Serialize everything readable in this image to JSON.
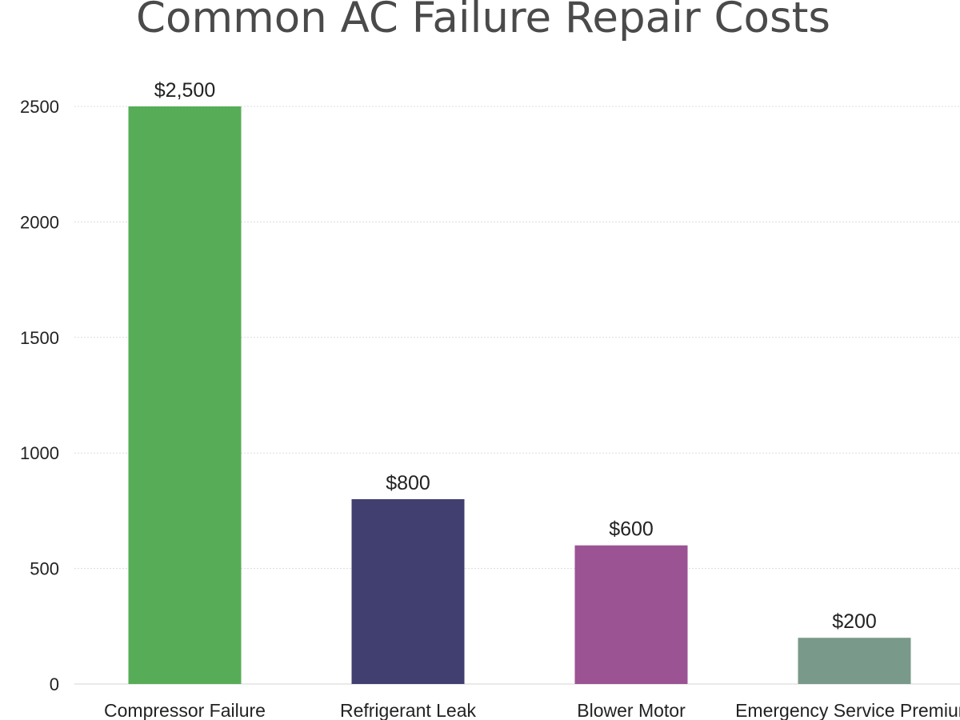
{
  "chart_data": {
    "type": "bar",
    "title": "Common AC Failure Repair Costs",
    "xlabel": "",
    "ylabel": "",
    "categories": [
      "Compressor Failure",
      "Refrigerant Leak",
      "Blower Motor",
      "Emergency Service Premium"
    ],
    "values": [
      2500,
      800,
      600,
      200
    ],
    "data_labels": [
      "$2,500",
      "$800",
      "$600",
      "$200"
    ],
    "colors": [
      "#57ad57",
      "#403f6f",
      "#9b5393",
      "#79998a"
    ],
    "ylim": [
      0,
      2500
    ],
    "yticks": [
      0,
      500,
      1000,
      1500,
      2000,
      2500
    ],
    "grid": true,
    "legend": false
  }
}
